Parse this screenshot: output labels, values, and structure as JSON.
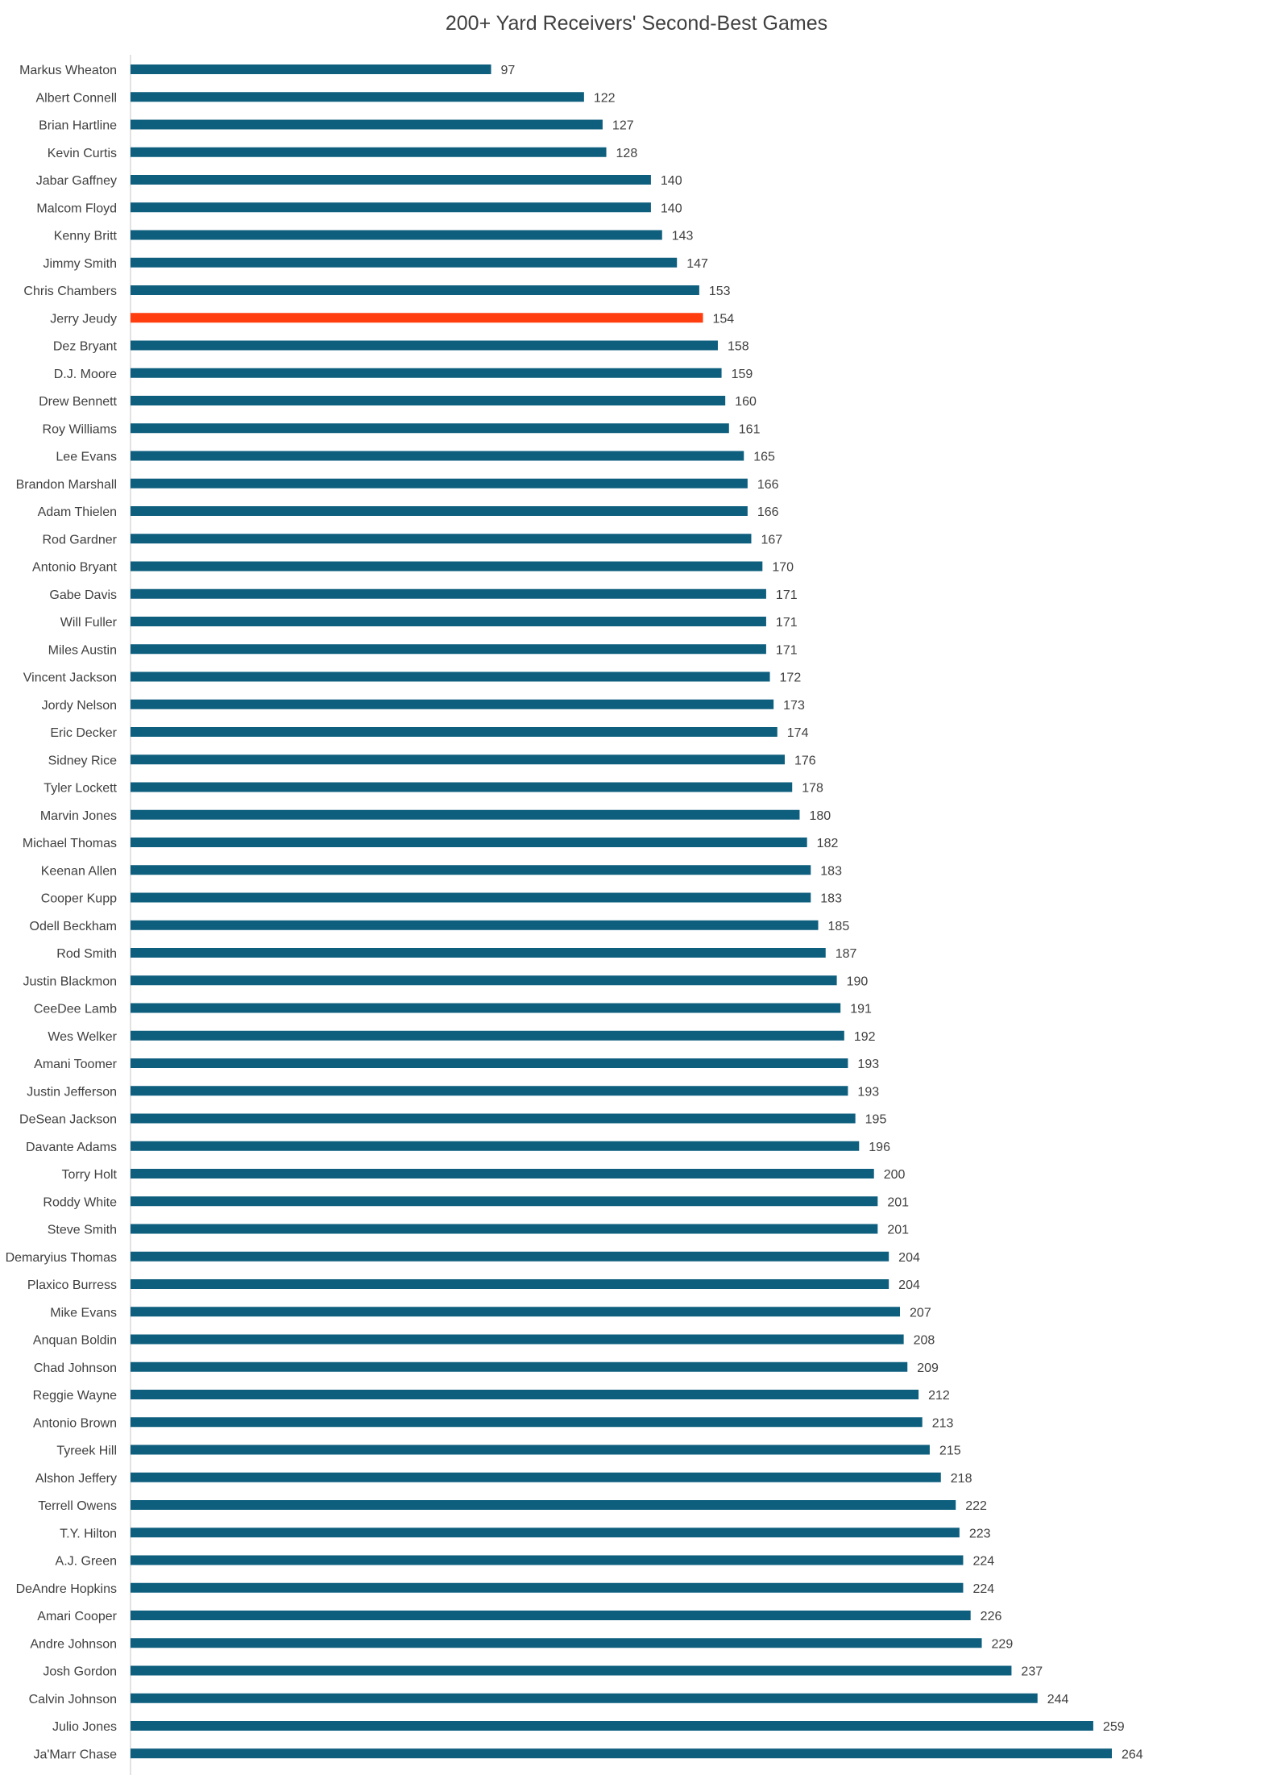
{
  "chart_data": {
    "type": "bar",
    "orientation": "horizontal",
    "title": "200+ Yard Receivers' Second-Best Games",
    "xlabel": "",
    "ylabel": "",
    "xlim": [
      0,
      264
    ],
    "grid": false,
    "legend": "none",
    "colors": {
      "default_bar": "#0E5F7E",
      "highlight_bar": "#FF3D0F",
      "axis_line": "#D9D9D9",
      "text": "#404040"
    },
    "highlight": "Jerry Jeudy",
    "categories": [
      "Markus Wheaton",
      "Albert Connell",
      "Brian Hartline",
      "Kevin Curtis",
      "Jabar Gaffney",
      "Malcom Floyd",
      "Kenny Britt",
      "Jimmy Smith",
      "Chris Chambers",
      "Jerry Jeudy",
      "Dez Bryant",
      "D.J. Moore",
      "Drew Bennett",
      "Roy Williams",
      "Lee Evans",
      "Brandon Marshall",
      "Adam Thielen",
      "Rod Gardner",
      "Antonio Bryant",
      "Gabe Davis",
      "Will Fuller",
      "Miles Austin",
      "Vincent Jackson",
      "Jordy Nelson",
      "Eric Decker",
      "Sidney Rice",
      "Tyler Lockett",
      "Marvin Jones",
      "Michael Thomas",
      "Keenan Allen",
      "Cooper Kupp",
      "Odell Beckham",
      "Rod Smith",
      "Justin Blackmon",
      "CeeDee Lamb",
      "Wes Welker",
      "Amani Toomer",
      "Justin Jefferson",
      "DeSean Jackson",
      "Davante Adams",
      "Torry Holt",
      "Roddy White",
      "Steve Smith",
      "Demaryius Thomas",
      "Plaxico Burress",
      "Mike Evans",
      "Anquan Boldin",
      "Chad Johnson",
      "Reggie Wayne",
      "Antonio Brown",
      "Tyreek Hill",
      "Alshon Jeffery",
      "Terrell Owens",
      "T.Y. Hilton",
      "A.J. Green",
      "DeAndre Hopkins",
      "Amari Cooper",
      "Andre Johnson",
      "Josh Gordon",
      "Calvin Johnson",
      "Julio Jones",
      "Ja'Marr Chase"
    ],
    "values": [
      97,
      122,
      127,
      128,
      140,
      140,
      143,
      147,
      153,
      154,
      158,
      159,
      160,
      161,
      165,
      166,
      166,
      167,
      170,
      171,
      171,
      171,
      172,
      173,
      174,
      176,
      178,
      180,
      182,
      183,
      183,
      185,
      187,
      190,
      191,
      192,
      193,
      193,
      195,
      196,
      200,
      201,
      201,
      204,
      204,
      207,
      208,
      209,
      212,
      213,
      215,
      218,
      222,
      223,
      224,
      224,
      226,
      229,
      237,
      244,
      259,
      264
    ]
  }
}
